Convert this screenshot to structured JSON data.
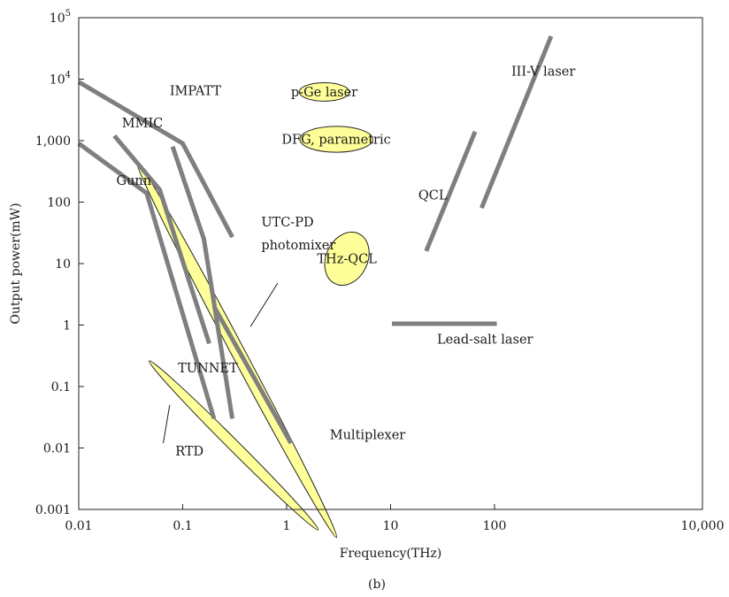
{
  "chart_data": {
    "type": "log-log region chart",
    "xlabel": "Frequency(THz)",
    "ylabel": "Output power(mW)",
    "caption": "(b)",
    "x_scale": "log",
    "y_scale": "log",
    "xlim": [
      0.01,
      10000
    ],
    "ylim": [
      0.001,
      100000
    ],
    "grid": false,
    "x_ticks": [
      {
        "value": 0.01,
        "label": "0.01"
      },
      {
        "value": 0.1,
        "label": "0.1"
      },
      {
        "value": 1,
        "label": "1"
      },
      {
        "value": 10,
        "label": "10"
      },
      {
        "value": 100,
        "label": "100"
      },
      {
        "value": 10000,
        "label": "10,000"
      }
    ],
    "y_ticks": [
      {
        "value": 100000,
        "label": "10",
        "sup": "5"
      },
      {
        "value": 10000,
        "label": "10",
        "sup": "4"
      },
      {
        "value": 1000,
        "label": "1,000"
      },
      {
        "value": 100,
        "label": "100"
      },
      {
        "value": 10,
        "label": "10"
      },
      {
        "value": 1,
        "label": "1"
      },
      {
        "value": 0.1,
        "label": "0.1"
      },
      {
        "value": 0.01,
        "label": "0.01"
      },
      {
        "value": 0.001,
        "label": "0.001"
      }
    ],
    "colors": {
      "line": "#7f7f7f",
      "region_fill": "#ffff99",
      "region_stroke": "#222222"
    },
    "lines": [
      {
        "name": "IMPATT",
        "points": [
          [
            0.01,
            9000
          ],
          [
            0.1,
            900
          ],
          [
            0.3,
            27
          ]
        ]
      },
      {
        "name": "MMIC",
        "points": [
          [
            0.022,
            1200
          ],
          [
            0.06,
            160
          ],
          [
            0.18,
            0.5
          ]
        ]
      },
      {
        "name": "Gunn",
        "points": [
          [
            0.01,
            900
          ],
          [
            0.045,
            140
          ],
          [
            0.2,
            0.03
          ]
        ]
      },
      {
        "name": "TUNNET",
        "points": [
          [
            0.08,
            800
          ],
          [
            0.16,
            25
          ],
          [
            0.3,
            0.03
          ]
        ]
      },
      {
        "name": "Multiplexer",
        "points": [
          [
            0.2,
            2
          ],
          [
            1.1,
            0.012
          ]
        ]
      },
      {
        "name": "QCL",
        "points": [
          [
            22,
            16
          ],
          [
            65,
            1400
          ]
        ]
      },
      {
        "name": "III-V laser",
        "points": [
          [
            75,
            80
          ],
          [
            350,
            50000
          ]
        ]
      },
      {
        "name": "Lead-salt laser",
        "points": [
          [
            10.3,
            1.05
          ],
          [
            105,
            1.05
          ]
        ]
      }
    ],
    "regions": [
      {
        "name": "p-Ge laser",
        "label": "p-Ge laser",
        "center": [
          2.3,
          6200
        ],
        "x_half_decades": 0.48,
        "y_half_decades": 0.3,
        "rotate": 0
      },
      {
        "name": "DFG, parametric",
        "label": "DFG, parametric",
        "center": [
          3.0,
          1050
        ],
        "x_half_decades": 0.7,
        "y_half_decades": 0.42,
        "rotate": 0
      },
      {
        "name": "THz-QCL",
        "label": "THz-QCL",
        "center": [
          3.8,
          12
        ],
        "x_half_decades": 0.4,
        "y_half_decades": 0.9,
        "rotate": 25
      },
      {
        "name": "UTC-PD photomixer",
        "label": "UTC-PD\nphotomixer",
        "center": [
          0.33,
          0.4
        ],
        "x_half_decades": 4.1,
        "y_half_decades": 0.22,
        "rotate": 62
      },
      {
        "name": "RTD",
        "label": "RTD",
        "center": [
          0.31,
          0.011
        ],
        "x_half_decades": 2.3,
        "y_half_decades": 0.18,
        "rotate": 45
      }
    ],
    "annotations": [
      {
        "text": "IMPATT",
        "at": [
          0.075,
          5500
        ]
      },
      {
        "text": "MMIC",
        "at": [
          0.026,
          1650
        ]
      },
      {
        "text": "Gunn",
        "at": [
          0.023,
          190
        ]
      },
      {
        "text": "TUNNET",
        "at": [
          0.09,
          0.17
        ]
      },
      {
        "text": "RTD",
        "at": [
          0.085,
          0.0075
        ]
      },
      {
        "text": "UTC-PD",
        "at": [
          0.57,
          40
        ]
      },
      {
        "text": "photomixer",
        "at": [
          0.57,
          17
        ]
      },
      {
        "text": "Multiplexer",
        "at": [
          2.6,
          0.014
        ]
      },
      {
        "text": "QCL",
        "at": [
          18.5,
          110
        ]
      },
      {
        "text": "III-V laser",
        "at": [
          145,
          11500
        ]
      },
      {
        "text": "Lead-salt laser",
        "at": [
          28,
          0.5
        ]
      }
    ],
    "leader_lines": [
      {
        "name": "UTC-PD leader",
        "points": [
          [
            0.82,
            4.8
          ],
          [
            0.45,
            0.95
          ]
        ]
      },
      {
        "name": "RTD leader",
        "points": [
          [
            0.065,
            0.012
          ],
          [
            0.075,
            0.05
          ]
        ]
      }
    ]
  }
}
